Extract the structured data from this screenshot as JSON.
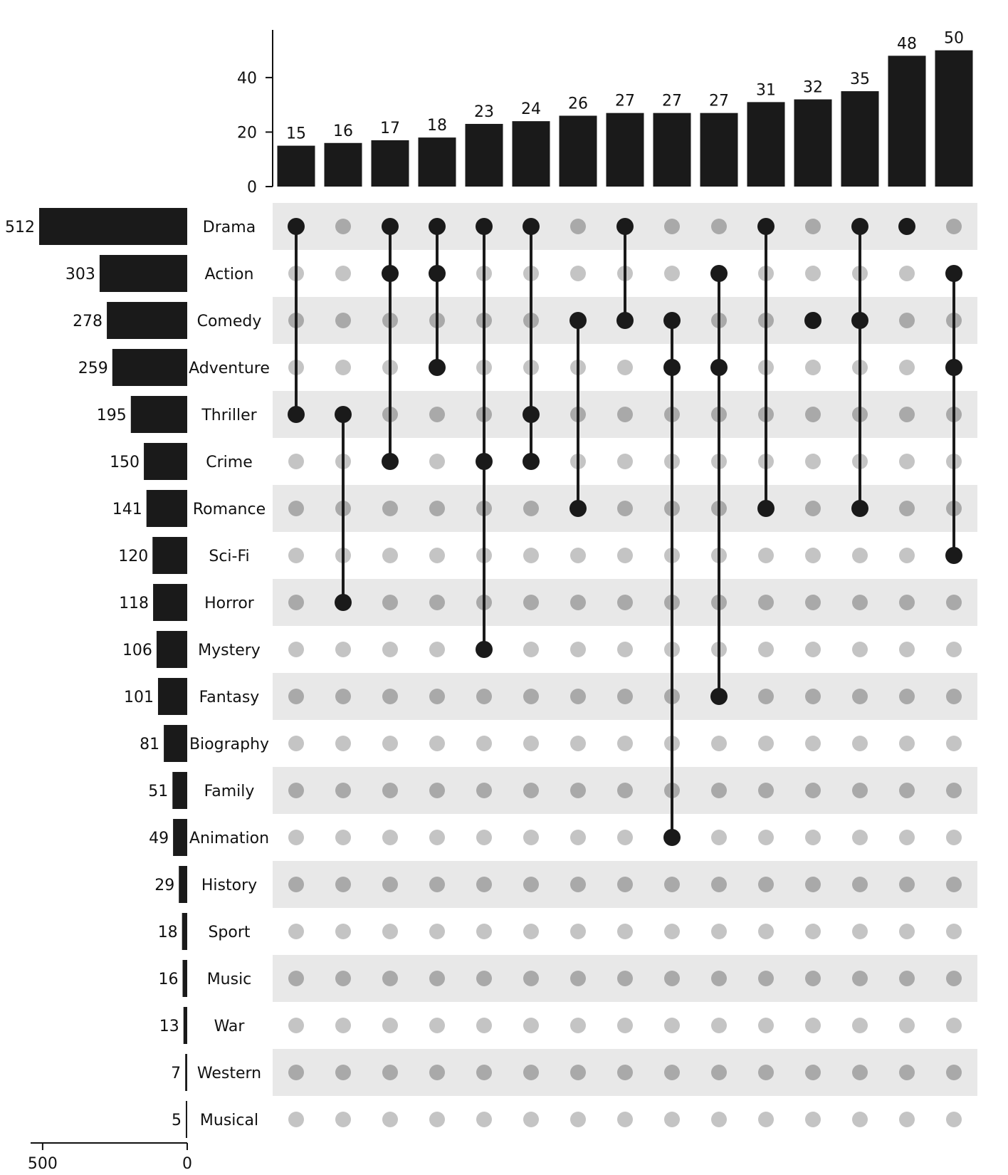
{
  "chart_data": {
    "type": "upset",
    "colors": {
      "bar": "#1a1a1a",
      "dot_active": "#1a1a1a",
      "dot_inactive_light": "#c4c4c4",
      "dot_inactive_dark": "#a9a9a9",
      "stripe": "#e8e8e8"
    },
    "sets": [
      {
        "name": "Drama",
        "size": 512
      },
      {
        "name": "Action",
        "size": 303
      },
      {
        "name": "Comedy",
        "size": 278
      },
      {
        "name": "Adventure",
        "size": 259
      },
      {
        "name": "Thriller",
        "size": 195
      },
      {
        "name": "Crime",
        "size": 150
      },
      {
        "name": "Romance",
        "size": 141
      },
      {
        "name": "Sci-Fi",
        "size": 120
      },
      {
        "name": "Horror",
        "size": 118
      },
      {
        "name": "Mystery",
        "size": 106
      },
      {
        "name": "Fantasy",
        "size": 101
      },
      {
        "name": "Biography",
        "size": 81
      },
      {
        "name": "Family",
        "size": 51
      },
      {
        "name": "Animation",
        "size": 49
      },
      {
        "name": "History",
        "size": 29
      },
      {
        "name": "Sport",
        "size": 18
      },
      {
        "name": "Music",
        "size": 16
      },
      {
        "name": "War",
        "size": 13
      },
      {
        "name": "Western",
        "size": 7
      },
      {
        "name": "Musical",
        "size": 5
      }
    ],
    "intersections": [
      {
        "value": 15,
        "members": [
          "Drama",
          "Thriller"
        ]
      },
      {
        "value": 16,
        "members": [
          "Thriller",
          "Horror"
        ]
      },
      {
        "value": 17,
        "members": [
          "Drama",
          "Action",
          "Crime"
        ]
      },
      {
        "value": 18,
        "members": [
          "Drama",
          "Action",
          "Adventure"
        ]
      },
      {
        "value": 23,
        "members": [
          "Drama",
          "Crime",
          "Mystery"
        ]
      },
      {
        "value": 24,
        "members": [
          "Drama",
          "Thriller",
          "Crime"
        ]
      },
      {
        "value": 26,
        "members": [
          "Comedy",
          "Romance"
        ]
      },
      {
        "value": 27,
        "members": [
          "Drama",
          "Comedy"
        ]
      },
      {
        "value": 27,
        "members": [
          "Comedy",
          "Adventure",
          "Animation"
        ]
      },
      {
        "value": 27,
        "members": [
          "Action",
          "Adventure",
          "Fantasy"
        ]
      },
      {
        "value": 31,
        "members": [
          "Drama",
          "Romance"
        ]
      },
      {
        "value": 32,
        "members": [
          "Comedy"
        ]
      },
      {
        "value": 35,
        "members": [
          "Drama",
          "Comedy",
          "Romance"
        ]
      },
      {
        "value": 48,
        "members": [
          "Drama"
        ]
      },
      {
        "value": 50,
        "members": [
          "Action",
          "Adventure",
          "Sci-Fi"
        ]
      }
    ],
    "intersection_axis": {
      "ticks": [
        0,
        20,
        40
      ],
      "ylim": [
        0,
        52
      ]
    },
    "set_size_axis": {
      "ticks": [
        500,
        0
      ],
      "xlim": [
        0,
        512
      ]
    }
  }
}
